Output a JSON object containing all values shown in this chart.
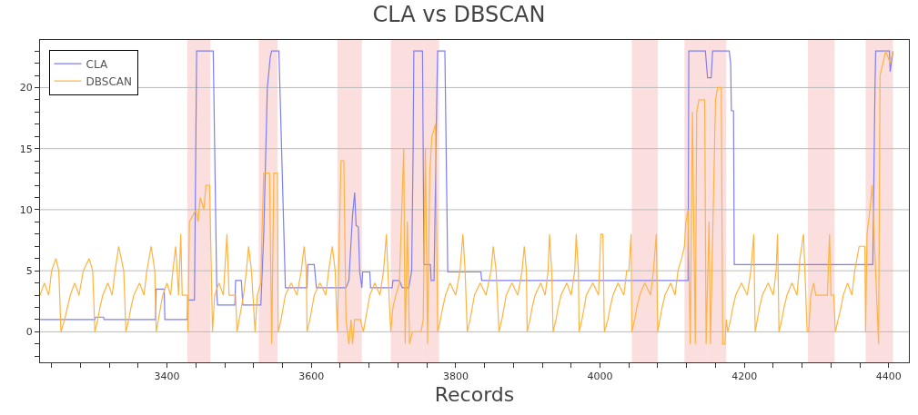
{
  "chart_data": {
    "type": "line",
    "title": "CLA vs DBSCAN",
    "xlabel": "Records",
    "xlim": [
      3224,
      4428
    ],
    "ylim": [
      -2.5,
      23.9
    ],
    "xticks": [
      {
        "value": 3240,
        "label": null
      },
      {
        "value": 3280,
        "label": null
      },
      {
        "value": 3320,
        "label": null
      },
      {
        "value": 3360,
        "label": null
      },
      3400,
      {
        "value": 3440,
        "label": null
      },
      {
        "value": 3480,
        "label": null
      },
      {
        "value": 3520,
        "label": null
      },
      {
        "value": 3560,
        "label": null
      },
      3600,
      {
        "value": 3640,
        "label": null
      },
      {
        "value": 3680,
        "label": null
      },
      {
        "value": 3720,
        "label": null
      },
      {
        "value": 3760,
        "label": null
      },
      3800,
      {
        "value": 3840,
        "label": null
      },
      {
        "value": 3880,
        "label": null
      },
      {
        "value": 3920,
        "label": null
      },
      {
        "value": 3960,
        "label": null
      },
      4000,
      {
        "value": 4040,
        "label": null
      },
      {
        "value": 4080,
        "label": null
      },
      {
        "value": 4120,
        "label": null
      },
      {
        "value": 4160,
        "label": null
      },
      4200,
      {
        "value": 4240,
        "label": null
      },
      {
        "value": 4280,
        "label": null
      },
      {
        "value": 4320,
        "label": null
      },
      {
        "value": 4360,
        "label": null
      },
      4400
    ],
    "yticks": [
      {
        "value": -2,
        "label": null
      },
      {
        "value": -1,
        "label": null
      },
      0,
      {
        "value": 1,
        "label": null
      },
      {
        "value": 2,
        "label": null
      },
      {
        "value": 3,
        "label": null
      },
      {
        "value": 4,
        "label": null
      },
      5,
      {
        "value": 6,
        "label": null
      },
      {
        "value": 7,
        "label": null
      },
      {
        "value": 8,
        "label": null
      },
      {
        "value": 9,
        "label": null
      },
      10,
      {
        "value": 11,
        "label": null
      },
      {
        "value": 12,
        "label": null
      },
      {
        "value": 13,
        "label": null
      },
      {
        "value": 14,
        "label": null
      },
      15,
      {
        "value": 16,
        "label": null
      },
      {
        "value": 17,
        "label": null
      },
      {
        "value": 18,
        "label": null
      },
      {
        "value": 19,
        "label": null
      },
      20,
      {
        "value": 21,
        "label": null
      },
      {
        "value": 22,
        "label": null
      },
      {
        "value": 23,
        "label": null
      }
    ],
    "grid": "y",
    "legend": "top left",
    "marker": "none",
    "line_style": "solid",
    "bands": [
      {
        "axis": "x",
        "from": 3428,
        "to": 3460,
        "color": "#fbdcdc"
      },
      {
        "axis": "x",
        "from": 3527,
        "to": 3553,
        "color": "#fbdcdc"
      },
      {
        "axis": "x",
        "from": 3636,
        "to": 3670,
        "color": "#fbdcdc"
      },
      {
        "axis": "x",
        "from": 3710,
        "to": 3755,
        "color": "#fbdcdc"
      },
      {
        "axis": "x",
        "from": 3755,
        "to": 3777,
        "color": "#fbdcdc"
      },
      {
        "axis": "x",
        "from": 4044,
        "to": 4080,
        "color": "#fbdcdc"
      },
      {
        "axis": "x",
        "from": 4117,
        "to": 4149,
        "color": "#fbdcdc"
      },
      {
        "axis": "x",
        "from": 4149,
        "to": 4175,
        "color": "#fbdcdc"
      },
      {
        "axis": "x",
        "from": 4288,
        "to": 4325,
        "color": "#fbdcdc"
      },
      {
        "axis": "x",
        "from": 4368,
        "to": 4406,
        "color": "#fbdcdc"
      }
    ],
    "series": [
      {
        "name": "CLA",
        "color": "#7f7ff0",
        "x": [
          3224,
          3300,
          3301,
          3312,
          3313,
          3384,
          3385,
          3396,
          3397,
          3428,
          3429,
          3438,
          3441,
          3464,
          3469,
          3470,
          3494,
          3495,
          3503,
          3505,
          3530,
          3534,
          3539,
          3543,
          3545,
          3555,
          3564,
          3594,
          3595,
          3604,
          3607,
          3648,
          3652,
          3657,
          3660,
          3662,
          3665,
          3667,
          3670,
          3671,
          3681,
          3682,
          3712,
          3713,
          3722,
          3726,
          3735,
          3739,
          3741,
          3742,
          3754,
          3756,
          3765,
          3766,
          3770,
          3774,
          3775,
          3785,
          3789,
          3835,
          3836,
          4122,
          4123,
          4146,
          4149,
          4154,
          4156,
          4179,
          4181,
          4182,
          4185,
          4186,
          4378,
          4381,
          4382,
          4401,
          4402,
          4406
        ],
        "values": [
          1,
          1,
          1.2,
          1.2,
          1,
          1,
          3.5,
          3.5,
          1,
          1,
          2.6,
          2.6,
          23,
          23,
          3.1,
          2.2,
          2.2,
          4.2,
          4.2,
          2.2,
          2.2,
          8,
          20,
          22.5,
          23,
          23,
          3.6,
          3.6,
          5.5,
          5.5,
          3.6,
          3.6,
          4.2,
          9.5,
          11.4,
          8.7,
          8.6,
          4.9,
          3.6,
          4.9,
          4.9,
          3.6,
          3.6,
          4.2,
          4.2,
          3.6,
          3.6,
          5,
          15,
          23,
          23,
          5.5,
          5.5,
          4.2,
          4.2,
          20,
          23,
          23,
          4.9,
          4.9,
          4.2,
          4.2,
          23,
          23,
          20.8,
          20.8,
          23,
          23,
          22,
          18.1,
          18.1,
          5.5,
          5.5,
          20,
          23,
          23,
          21.3,
          23
        ]
      },
      {
        "name": "DBSCAN",
        "color": "#ffb340",
        "x": [
          3224,
          3230,
          3236,
          3240,
          3246,
          3250,
          3253,
          3258,
          3262,
          3266,
          3272,
          3278,
          3284,
          3292,
          3297,
          3300,
          3304,
          3307,
          3311,
          3318,
          3324,
          3328,
          3333,
          3340,
          3343,
          3347,
          3350,
          3354,
          3362,
          3368,
          3372,
          3378,
          3383,
          3385,
          3388,
          3391,
          3394,
          3400,
          3405,
          3408,
          3412,
          3416,
          3419,
          3421,
          3428,
          3429,
          3431,
          3440,
          3443,
          3446,
          3451,
          3454,
          3459,
          3463,
          3466,
          3472,
          3478,
          3483,
          3486,
          3495,
          3497,
          3500,
          3503,
          3506,
          3510,
          3513,
          3517,
          3522,
          3525,
          3530,
          3532,
          3534,
          3542,
          3545,
          3548,
          3553,
          3554,
          3558,
          3561,
          3564,
          3572,
          3580,
          3586,
          3590,
          3593,
          3594,
          3598,
          3601,
          3604,
          3612,
          3620,
          3624,
          3629,
          3633,
          3636,
          3641,
          3645,
          3648,
          3652,
          3655,
          3657,
          3660,
          3664,
          3668,
          3672,
          3675,
          3678,
          3681,
          3688,
          3695,
          3700,
          3704,
          3706,
          3710,
          3713,
          3717,
          3722,
          3728,
          3730,
          3733,
          3736,
          3740,
          3752,
          3755,
          3758,
          3761,
          3764,
          3767,
          3772,
          3775,
          3779,
          3782,
          3786,
          3792,
          3800,
          3806,
          3810,
          3813,
          3816,
          3820,
          3823,
          3826,
          3834,
          3842,
          3849,
          3852,
          3856,
          3860,
          3864,
          3867,
          3870,
          3878,
          3886,
          3892,
          3895,
          3898,
          3899,
          3903,
          3906,
          3910,
          3918,
          3924,
          3928,
          3930,
          3933,
          3935,
          3939,
          3942,
          3946,
          3954,
          3960,
          3965,
          3967,
          3970,
          3971,
          3975,
          3978,
          3981,
          3990,
          3998,
          4001,
          4004,
          4006,
          4011,
          4014,
          4018,
          4025,
          4033,
          4037,
          4040,
          4043,
          4044,
          4048,
          4051,
          4055,
          4062,
          4070,
          4074,
          4078,
          4080,
          4083,
          4086,
          4090,
          4098,
          4104,
          4108,
          4113,
          4117,
          4119,
          4122,
          4125,
          4128,
          4132,
          4134,
          4137,
          4145,
          4147,
          4151,
          4153,
          4160,
          4163,
          4168,
          4170,
          4173,
          4175,
          4177,
          4181,
          4184,
          4188,
          4196,
          4204,
          4209,
          4213,
          4215,
          4218,
          4221,
          4225,
          4233,
          4240,
          4244,
          4246,
          4248,
          4252,
          4255,
          4259,
          4266,
          4273,
          4277,
          4282,
          4287,
          4289,
          4292,
          4296,
          4299,
          4315,
          4318,
          4320,
          4324,
          4326,
          4330,
          4334,
          4337,
          4343,
          4349,
          4353,
          4359,
          4367,
          4368,
          4370,
          4374,
          4377,
          4386,
          4388,
          4392,
          4396,
          4402,
          4406
        ],
        "values": [
          3,
          4,
          3,
          5,
          6,
          5,
          0,
          1,
          2,
          3,
          4,
          3,
          5,
          6,
          5,
          0,
          1,
          2,
          3,
          4,
          3,
          5,
          7,
          5,
          0,
          1,
          2,
          3,
          4,
          3,
          5,
          7,
          5,
          0,
          1,
          2,
          3,
          4,
          3,
          5,
          7,
          3,
          8,
          3,
          3,
          0,
          9,
          10,
          9,
          11,
          10,
          12,
          12,
          0,
          3,
          4,
          3,
          8,
          3,
          3,
          0,
          1,
          2,
          3,
          5,
          7,
          5,
          0,
          3,
          4,
          9,
          13,
          13,
          -1,
          13,
          13,
          0,
          1,
          2,
          3,
          4,
          3,
          5,
          7,
          5,
          0,
          1,
          2,
          3,
          4,
          3,
          5,
          7,
          5,
          0,
          14,
          14,
          1,
          -1,
          1,
          -1,
          1,
          1,
          1,
          0,
          1,
          2,
          3,
          4,
          3,
          5,
          8,
          5,
          0,
          2,
          3,
          4,
          15,
          -1,
          9,
          -1,
          0,
          0,
          1,
          15,
          -1,
          13,
          16,
          17,
          0,
          1,
          2,
          3,
          4,
          3,
          5,
          8,
          5,
          0,
          1,
          2,
          3,
          4,
          3,
          5,
          7,
          5,
          0,
          1,
          2,
          3,
          4,
          3,
          5,
          7,
          5,
          0,
          1,
          2,
          3,
          4,
          3,
          5,
          8,
          5,
          0,
          1,
          2,
          3,
          4,
          3,
          5,
          8,
          5,
          0,
          1,
          2,
          3,
          4,
          3,
          8,
          8,
          0,
          1,
          2,
          3,
          4,
          3,
          5,
          5,
          8,
          0,
          1,
          2,
          3,
          4,
          3,
          5,
          8,
          0,
          1,
          2,
          3,
          4,
          3,
          5,
          6,
          7,
          9,
          10,
          -1,
          18,
          -1,
          18,
          19,
          19,
          -1,
          9,
          -1,
          19,
          20,
          20,
          -1,
          -1,
          1,
          0,
          1,
          2,
          3,
          4,
          3,
          5,
          8,
          0,
          1,
          2,
          3,
          4,
          3,
          5,
          8,
          0,
          1,
          2,
          3,
          4,
          3,
          6,
          8,
          0,
          0,
          3,
          4,
          3,
          3,
          8,
          3,
          3,
          0,
          1,
          2,
          3,
          4,
          3,
          5,
          7,
          7,
          0,
          8,
          10,
          12,
          -1,
          21,
          22,
          23,
          22,
          23
        ]
      }
    ]
  }
}
